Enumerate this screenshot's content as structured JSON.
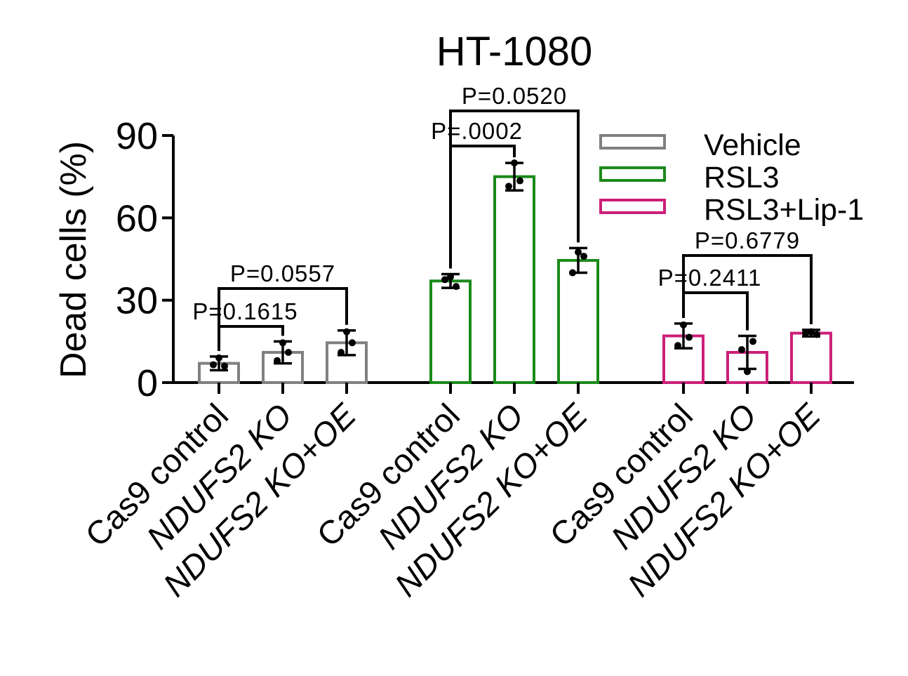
{
  "chart_data": {
    "type": "bar",
    "title": "HT-1080",
    "xlabel": "",
    "ylabel": "Dead cells (%)",
    "ylim": [
      0,
      90
    ],
    "yticks": [
      "0",
      "30",
      "60",
      "90"
    ],
    "legend_placement": "top-right",
    "grid": false,
    "categories": [
      "Cas9 control",
      "NDUFS2 KO",
      "NDUFS2 KO+OE"
    ],
    "series": [
      {
        "name": "Vehicle",
        "color": "#808080",
        "values": [
          7,
          11,
          14.5
        ],
        "error": [
          2.5,
          4,
          4.5
        ],
        "points": [
          [
            9,
            6.5,
            6
          ],
          [
            14.5,
            8,
            11
          ],
          [
            18.5,
            11,
            14.5
          ]
        ]
      },
      {
        "name": "RSL3",
        "color": "#1a8a1a",
        "values": [
          37,
          75,
          44.5
        ],
        "error": [
          2.5,
          5,
          4.5
        ],
        "points": [
          [
            38.5,
            37.5,
            35
          ],
          [
            80,
            71.5,
            73.5
          ],
          [
            47.5,
            40,
            46
          ]
        ]
      },
      {
        "name": "RSL3+Lip-1",
        "color": "#cc1f7a",
        "values": [
          17,
          11,
          18
        ],
        "error": [
          4.5,
          6,
          1.2
        ],
        "points": [
          [
            21,
            13.5,
            16.5
          ],
          [
            4,
            12,
            15
          ],
          [
            18.5,
            18,
            17.5
          ]
        ]
      }
    ],
    "annotations": [
      {
        "group": 0,
        "from": 0,
        "to": 1,
        "text": "P=0.1615",
        "level": 0
      },
      {
        "group": 0,
        "from": 0,
        "to": 2,
        "text": "P=0.0557",
        "level": 1
      },
      {
        "group": 1,
        "from": 0,
        "to": 1,
        "text": "P=.0002",
        "level": 0
      },
      {
        "group": 1,
        "from": 0,
        "to": 2,
        "text": "P=0.0520",
        "level": 1
      },
      {
        "group": 2,
        "from": 0,
        "to": 1,
        "text": "P=0.2411",
        "level": 0
      },
      {
        "group": 2,
        "from": 0,
        "to": 2,
        "text": "P=0.6779",
        "level": 1
      }
    ]
  }
}
